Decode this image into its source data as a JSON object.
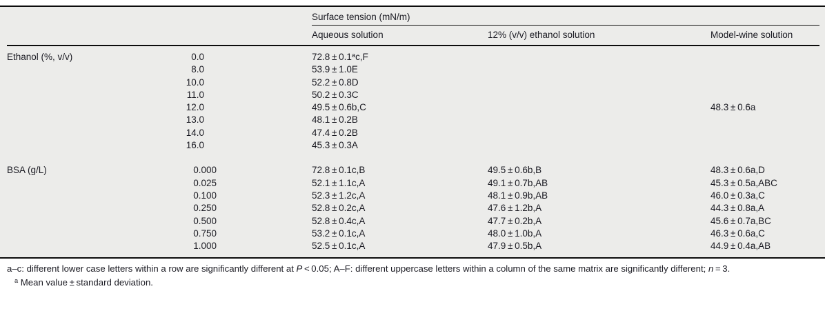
{
  "colors": {
    "band_background": "#ECECEA",
    "text": "#1A1A22",
    "rule": "#0C0C0C"
  },
  "table": {
    "spanner": "Surface tension (mN/m)",
    "columns": [
      "Aqueous solution",
      "12% (v/v) ethanol solution",
      "Model-wine solution"
    ],
    "sections": [
      {
        "label": "Ethanol (%, v/v)",
        "rows": [
          {
            "amount": "0.0",
            "cells": [
              "72.8 ± 0.1^a^c,F",
              "",
              ""
            ]
          },
          {
            "amount": "8.0",
            "cells": [
              "53.9 ± 1.0E",
              "",
              ""
            ]
          },
          {
            "amount": "10.0",
            "cells": [
              "52.2 ± 0.8D",
              "",
              ""
            ]
          },
          {
            "amount": "11.0",
            "cells": [
              "50.2 ± 0.3C",
              "",
              ""
            ]
          },
          {
            "amount": "12.0",
            "cells": [
              "49.5 ± 0.6b,C",
              "",
              "48.3 ± 0.6a"
            ]
          },
          {
            "amount": "13.0",
            "cells": [
              "48.1 ± 0.2B",
              "",
              ""
            ]
          },
          {
            "amount": "14.0",
            "cells": [
              "47.4 ± 0.2B",
              "",
              ""
            ]
          },
          {
            "amount": "16.0",
            "cells": [
              "45.3 ± 0.3A",
              "",
              ""
            ]
          }
        ]
      },
      {
        "label": "BSA (g/L)",
        "rows": [
          {
            "amount": "0.000",
            "cells": [
              "72.8 ± 0.1c,B",
              "49.5 ± 0.6b,B",
              "48.3 ± 0.6a,D"
            ]
          },
          {
            "amount": "0.025",
            "cells": [
              "52.1 ± 1.1c,A",
              "49.1 ± 0.7b,AB",
              "45.3 ± 0.5a,ABC"
            ]
          },
          {
            "amount": "0.100",
            "cells": [
              "52.3 ± 1.2c,A",
              "48.1 ± 0.9b,AB",
              "46.0 ± 0.3a,C"
            ]
          },
          {
            "amount": "0.250",
            "cells": [
              "52.8 ± 0.2c,A",
              "47.6 ± 1.2b,A",
              "44.3 ± 0.8a,A"
            ]
          },
          {
            "amount": "0.500",
            "cells": [
              "52.8 ± 0.4c,A",
              "47.7 ± 0.2b,A",
              "45.6 ± 0.7a,BC"
            ]
          },
          {
            "amount": "0.750",
            "cells": [
              "53.2 ± 0.1c,A",
              "48.0 ± 1.0b,A",
              "46.3 ± 0.6a,C"
            ]
          },
          {
            "amount": "1.000",
            "cells": [
              "52.5 ± 0.1c,A",
              "47.9 ± 0.5b,A",
              "44.9 ± 0.4a,AB"
            ]
          }
        ]
      }
    ]
  },
  "footnotes": {
    "note1": "a–c: different lower case letters within a row are significantly different at _P_ < 0.05; A–F: different uppercase letters within a column of the same matrix are significantly different; _n_ = 3.",
    "note2": "^a^ Mean value ± standard deviation."
  }
}
